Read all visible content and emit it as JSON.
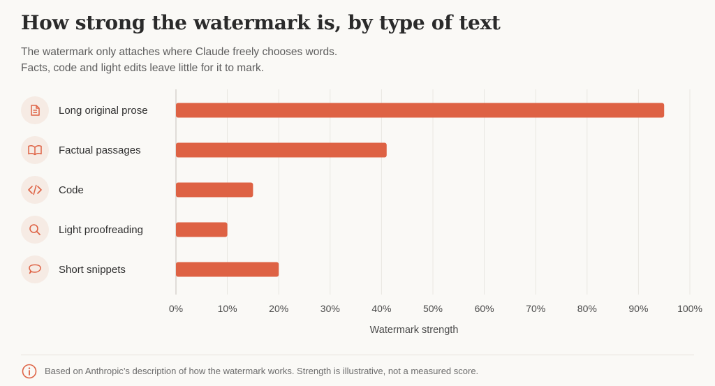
{
  "title": "How strong the watermark is, by type of text",
  "subtitle_lines": [
    "The watermark only attaches where Claude freely chooses words.",
    "Facts, code and light edits leave little for it to mark."
  ],
  "footnote": "Based on Anthropic’s description of how the watermark works. Strength is illustrative, not a measured score.",
  "footnote_icon": "info-icon",
  "colors": {
    "bar": "#de6244",
    "icon_bg": "#f6ebe4",
    "icon": "#de6244",
    "grid": "#e9e6e1"
  },
  "chart_data": {
    "type": "bar",
    "orientation": "horizontal",
    "categories": [
      "Long original prose",
      "Factual passages",
      "Code",
      "Light proofreading",
      "Short snippets"
    ],
    "category_icons": [
      "document-icon",
      "book-icon",
      "code-icon",
      "search-icon",
      "chat-bubble-icon"
    ],
    "values": [
      95,
      41,
      15,
      10,
      20
    ],
    "xlabel": "Watermark strength",
    "xlim": [
      0,
      100
    ],
    "x_ticks": [
      0,
      10,
      20,
      30,
      40,
      50,
      60,
      70,
      80,
      90,
      100
    ],
    "x_tick_labels": [
      "0%",
      "10%",
      "20%",
      "30%",
      "40%",
      "50%",
      "60%",
      "70%",
      "80%",
      "90%",
      "100%"
    ],
    "grid": true,
    "legend": false
  }
}
